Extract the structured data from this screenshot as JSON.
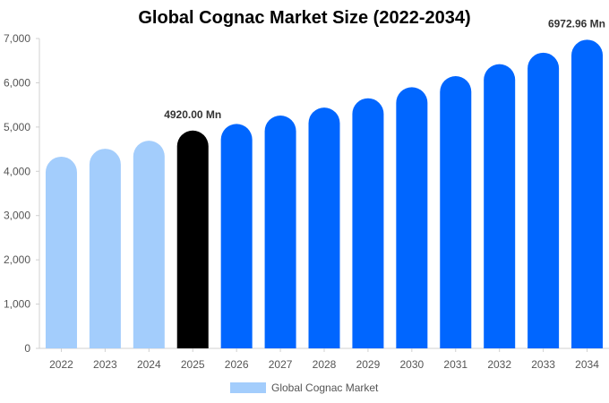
{
  "chart_data": {
    "type": "bar",
    "title": "Global Cognac Market Size (2022-2034)",
    "xlabel": "",
    "ylabel": "",
    "categories": [
      "2022",
      "2023",
      "2024",
      "2025",
      "2026",
      "2027",
      "2028",
      "2029",
      "2030",
      "2031",
      "2032",
      "2033",
      "2034"
    ],
    "series": [
      {
        "name": "Global Cognac Market",
        "values": [
          4330,
          4510,
          4690,
          4920,
          5070,
          5260,
          5440,
          5650,
          5900,
          6150,
          6420,
          6680,
          6972.96
        ]
      }
    ],
    "ylim": [
      0,
      7000
    ],
    "yticks": [
      "0",
      "1,000",
      "2,000",
      "3,000",
      "4,000",
      "5,000",
      "6,000",
      "7,000"
    ],
    "annotations": [
      {
        "category": "2025",
        "text": "4920.00 Mn"
      },
      {
        "category": "2034",
        "text": "6972.96 Mn"
      }
    ],
    "bar_colors": {
      "historical": "#a3cdfc",
      "current": "#000000",
      "forecast": "#0066ff"
    },
    "grid": false,
    "legend_position": "bottom"
  }
}
